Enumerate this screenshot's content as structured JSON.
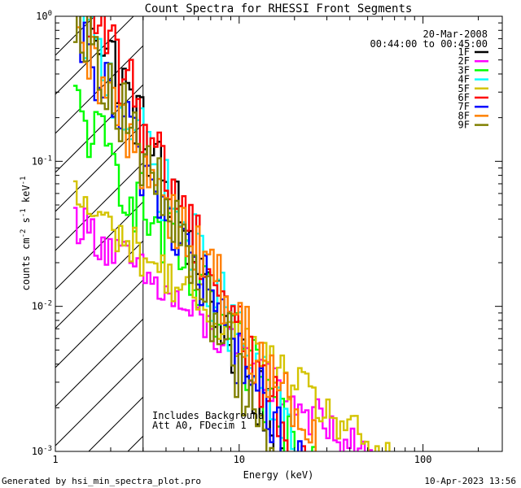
{
  "chart_data": {
    "type": "line",
    "title": "Count Spectra for RHESSI Front Segments",
    "xlabel": "Energy (keV)",
    "ylabel": "counts cm",
    "ylabel_parts": {
      "base": "counts cm",
      "exp1": "-2",
      "mid1": " s",
      "exp2": "-1",
      "mid2": " keV",
      "exp3": "-1"
    },
    "xscale": "log",
    "yscale": "log",
    "xlim": [
      1,
      270
    ],
    "ylim": [
      0.001,
      1
    ],
    "x_ticks": [
      {
        "value": 1,
        "label": "1"
      },
      {
        "value": 10,
        "label": "10"
      },
      {
        "value": 100,
        "label": "100"
      }
    ],
    "y_ticks": [
      {
        "value": 1,
        "base": "10",
        "exp": "0"
      },
      {
        "value": 0.1,
        "base": "10",
        "exp": "-1"
      },
      {
        "value": 0.01,
        "base": "10",
        "exp": "-2"
      },
      {
        "value": 0.001,
        "base": "10",
        "exp": "-3"
      }
    ],
    "shaded_region": {
      "x_from": 1,
      "x_to": 3,
      "style": "hatched"
    },
    "date": "20-Mar-2008",
    "time_range": "00:44:00 to 00:45:00",
    "annotations": [
      "Includes Background",
      "Att A0, FDecim 1"
    ],
    "series": [
      {
        "name": "1F",
        "color": "#000000",
        "y_at_3": 0.15,
        "slope": 2.95,
        "noise": 0.25
      },
      {
        "name": "2F",
        "color": "#ff00ff",
        "y_at_3": 0.016,
        "slope": 1.05,
        "noise": 0.15
      },
      {
        "name": "3F",
        "color": "#00ff00",
        "y_at_3": 0.045,
        "slope": 1.9,
        "noise": 0.25
      },
      {
        "name": "4F",
        "color": "#00ffff",
        "y_at_3": 0.12,
        "slope": 2.55,
        "noise": 0.25
      },
      {
        "name": "5F",
        "color": "#d4c400",
        "y_at_3": 0.022,
        "slope": 1.08,
        "noise": 0.15
      },
      {
        "name": "6F",
        "color": "#ff0000",
        "y_at_3": 0.18,
        "slope": 2.75,
        "noise": 0.25
      },
      {
        "name": "7F",
        "color": "#0000ff",
        "y_at_3": 0.09,
        "slope": 2.5,
        "noise": 0.25
      },
      {
        "name": "8F",
        "color": "#ff8000",
        "y_at_3": 0.1,
        "slope": 2.15,
        "noise": 0.25
      },
      {
        "name": "9F",
        "color": "#808000",
        "y_at_3": 0.1,
        "slope": 2.8,
        "noise": 0.25
      }
    ]
  },
  "footer_left": "Generated by hsi_min_spectra_plot.pro",
  "footer_right": "10-Apr-2023 13:56"
}
